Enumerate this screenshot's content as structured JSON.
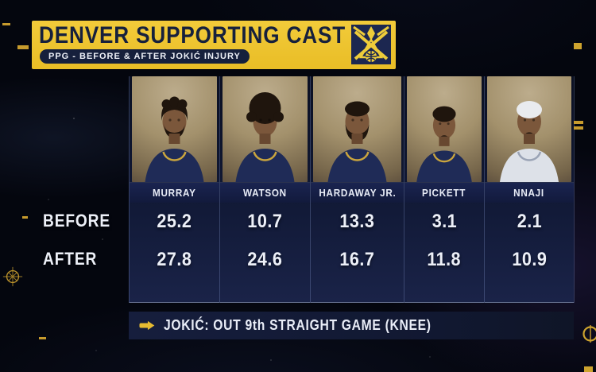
{
  "header": {
    "title": "DENVER SUPPORTING CAST",
    "subtitle": "PPG - BEFORE & AFTER JOKIĆ INJURY"
  },
  "footnote": "JOKIĆ: OUT 9th STRAIGHT GAME (KNEE)",
  "icons": {
    "team_logo": "denver-nuggets-pickaxe-logo",
    "footnote_marker": "right-arrow-icon",
    "left_decoration": "compass-reticle-icon",
    "right_decoration": "ring-reticle-icon"
  },
  "colors": {
    "banner_gold": "#e9bd26",
    "banner_text_navy": "#16203c",
    "page_background": "#04060e",
    "panel_navy": "#111936",
    "text_light": "#edf0f8",
    "accent_gold": "#c79b2d"
  },
  "chart_data": {
    "type": "table",
    "title": "DENVER SUPPORTING CAST",
    "subtitle": "PPG - BEFORE & AFTER JOKIĆ INJURY",
    "categories": [
      "MURRAY",
      "WATSON",
      "HARDAWAY JR.",
      "PICKETT",
      "NNAJI"
    ],
    "series": [
      {
        "name": "BEFORE",
        "values": [
          25.2,
          10.7,
          13.3,
          3.1,
          2.1
        ]
      },
      {
        "name": "AFTER",
        "values": [
          27.8,
          24.6,
          16.7,
          11.8,
          10.9
        ]
      }
    ],
    "note": "JOKIĆ: OUT 9th STRAIGHT GAME (KNEE)",
    "units": "points per game"
  }
}
